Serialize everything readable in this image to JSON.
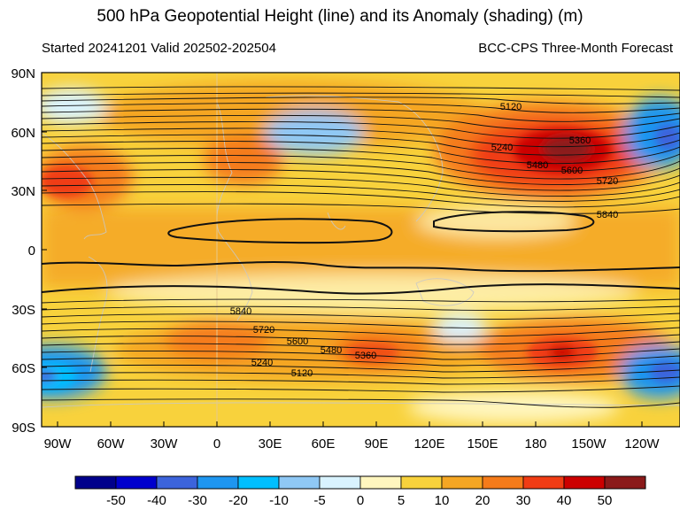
{
  "title": "500 hPa Geopotential Height (line) and its Anomaly (shading) (m)",
  "subtitle_left": "Started 20241201  Valid 202502-202504",
  "subtitle_right": "BCC-CPS Three-Month Forecast",
  "lat_labels": [
    "90N",
    "60N",
    "30N",
    "0",
    "30S",
    "60S",
    "90S"
  ],
  "lon_labels": [
    "90W",
    "60W",
    "30W",
    "0",
    "30E",
    "60E",
    "90E",
    "120E",
    "150E",
    "180",
    "150W",
    "120W"
  ],
  "contour_labels": [
    {
      "text": "5120"
    },
    {
      "text": "5240"
    },
    {
      "text": "5360"
    },
    {
      "text": "5480"
    },
    {
      "text": "5600"
    },
    {
      "text": "5720"
    },
    {
      "text": "5840"
    },
    {
      "text": "5840"
    },
    {
      "text": "5720"
    },
    {
      "text": "5600"
    },
    {
      "text": "5480"
    },
    {
      "text": "5360"
    },
    {
      "text": "5240"
    },
    {
      "text": "5120"
    }
  ],
  "colorbar": {
    "colors": [
      "#00008b",
      "#0000cd",
      "#3c64dc",
      "#1e96f0",
      "#00bfff",
      "#8fc8f5",
      "#d9f3ff",
      "#fff6bf",
      "#f8d23c",
      "#f5a623",
      "#f57b1a",
      "#f03c14",
      "#cc0000",
      "#8b1a1a"
    ],
    "labels": [
      "-50",
      "-40",
      "-30",
      "-20",
      "-10",
      "-5",
      "0",
      "5",
      "10",
      "20",
      "30",
      "40",
      "50"
    ]
  }
}
